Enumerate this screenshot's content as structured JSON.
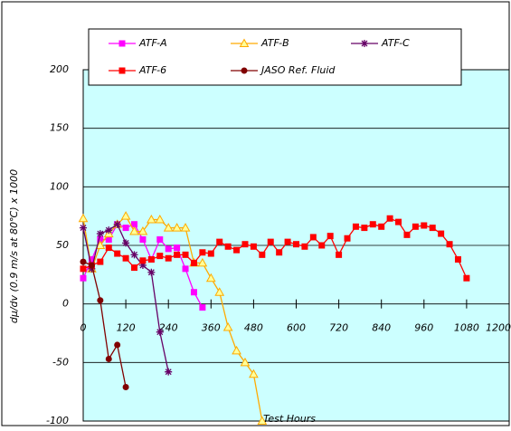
{
  "chart_data": {
    "type": "line",
    "y_label": "dμ/dv (0.9 m/s at 80℃) x 1000",
    "x_label": "Test Hours",
    "xlim": [
      0,
      1200
    ],
    "xticks": [
      0,
      120,
      240,
      360,
      480,
      600,
      720,
      840,
      960,
      1080,
      1200
    ],
    "ylim": [
      -100,
      200
    ],
    "yticks": [
      -100,
      -50,
      0,
      50,
      100,
      150,
      200
    ],
    "grid": true,
    "background": "#ccffff",
    "series": [
      {
        "name": "ATF-A",
        "color": "#ff00ff",
        "marker": "square",
        "x": [
          0,
          24,
          48,
          72,
          96,
          120,
          144,
          168,
          192,
          216,
          240,
          264,
          288,
          312,
          336
        ],
        "values": [
          22,
          38,
          55,
          55,
          68,
          65,
          68,
          55,
          38,
          55,
          47,
          48,
          30,
          10,
          -3
        ]
      },
      {
        "name": "ATF-B",
        "color": "#ffaa00",
        "marker": "triangle",
        "x": [
          0,
          24,
          48,
          72,
          96,
          120,
          144,
          168,
          192,
          216,
          240,
          264,
          288,
          312,
          336,
          360,
          384,
          408,
          432,
          456,
          480,
          504
        ],
        "values": [
          73,
          30,
          50,
          60,
          68,
          75,
          62,
          62,
          72,
          72,
          65,
          65,
          65,
          35,
          35,
          22,
          10,
          -20,
          -40,
          -50,
          -60,
          -100
        ]
      },
      {
        "name": "ATF-C",
        "color": "#660066",
        "marker": "star",
        "x": [
          0,
          24,
          48,
          72,
          96,
          120,
          144,
          168,
          192,
          216,
          240
        ],
        "values": [
          65,
          30,
          60,
          63,
          68,
          52,
          42,
          33,
          27,
          -24,
          -58
        ]
      },
      {
        "name": "ATF-6",
        "color": "#ff0000",
        "marker": "square",
        "x": [
          0,
          24,
          48,
          72,
          96,
          120,
          144,
          168,
          192,
          216,
          240,
          264,
          288,
          312,
          336,
          360,
          384,
          408,
          432,
          456,
          480,
          504,
          528,
          552,
          576,
          600,
          624,
          648,
          672,
          696,
          720,
          744,
          768,
          792,
          816,
          840,
          864,
          888,
          912,
          936,
          960,
          984,
          1008,
          1032,
          1056,
          1080
        ],
        "values": [
          30,
          33,
          36,
          48,
          43,
          39,
          31,
          37,
          38,
          41,
          39,
          42,
          42,
          35,
          44,
          43,
          53,
          49,
          46,
          51,
          49,
          42,
          53,
          44,
          53,
          51,
          49,
          57,
          50,
          58,
          42,
          56,
          66,
          65,
          68,
          66,
          73,
          70,
          59,
          66,
          67,
          65,
          60,
          51,
          38,
          22
        ]
      },
      {
        "name": "JASO Ref. Fluid",
        "color": "#800000",
        "marker": "circle",
        "x": [
          0,
          24,
          48,
          72,
          96,
          120
        ],
        "values": [
          36,
          33,
          3,
          -47,
          -35,
          -71
        ]
      }
    ]
  }
}
